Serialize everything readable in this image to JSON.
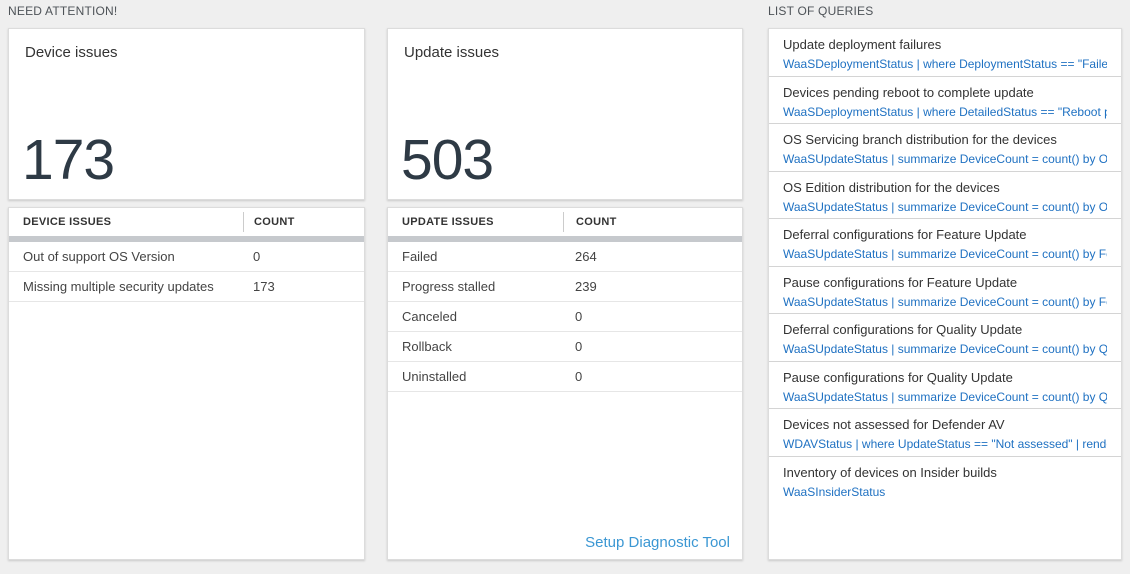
{
  "sections": {
    "need_attention": "NEED ATTENTION!",
    "list_of_queries": "LIST OF QUERIES"
  },
  "device_card": {
    "title": "Device issues",
    "count": "173",
    "table": {
      "col_issue": "DEVICE ISSUES",
      "col_count": "COUNT",
      "rows": [
        {
          "issue": "Out of support OS Version",
          "count": "0"
        },
        {
          "issue": "Missing multiple security updates",
          "count": "173"
        }
      ]
    }
  },
  "update_card": {
    "title": "Update issues",
    "count": "503",
    "table": {
      "col_issue": "UPDATE ISSUES",
      "col_count": "COUNT",
      "rows": [
        {
          "issue": "Failed",
          "count": "264"
        },
        {
          "issue": "Progress stalled",
          "count": "239"
        },
        {
          "issue": "Canceled",
          "count": "0"
        },
        {
          "issue": "Rollback",
          "count": "0"
        },
        {
          "issue": "Uninstalled",
          "count": "0"
        }
      ]
    },
    "footer_link": "Setup Diagnostic Tool"
  },
  "queries": {
    "items": [
      {
        "title": "Update deployment failures",
        "query": "WaaSDeploymentStatus | where DeploymentStatus == \"Failed\" |..."
      },
      {
        "title": "Devices pending reboot to complete update",
        "query": "WaaSDeploymentStatus | where DetailedStatus == \"Reboot pend..."
      },
      {
        "title": "OS Servicing branch distribution for the devices",
        "query": "WaaSUpdateStatus | summarize DeviceCount = count() by OSSer..."
      },
      {
        "title": "OS Edition distribution for the devices",
        "query": "WaaSUpdateStatus | summarize DeviceCount = count() by OSEdit..."
      },
      {
        "title": "Deferral configurations for Feature Update",
        "query": "WaaSUpdateStatus | summarize DeviceCount = count() by Featur..."
      },
      {
        "title": "Pause configurations for Feature Update",
        "query": "WaaSUpdateStatus | summarize DeviceCount = count() by Featur..."
      },
      {
        "title": "Deferral configurations for Quality Update",
        "query": "WaaSUpdateStatus | summarize DeviceCount = count() by Qualit..."
      },
      {
        "title": "Pause configurations for Quality Update",
        "query": "WaaSUpdateStatus | summarize DeviceCount = count() by Qualit..."
      },
      {
        "title": "Devices not assessed for Defender AV",
        "query": "WDAVStatus | where UpdateStatus == \"Not assessed\" | render ta..."
      },
      {
        "title": "Inventory of devices on Insider builds",
        "query": "WaaSInsiderStatus"
      }
    ]
  },
  "colors": {
    "accent_link": "#3b97d3",
    "query_link": "#1f71c2",
    "big_number": "#2e3a45"
  }
}
